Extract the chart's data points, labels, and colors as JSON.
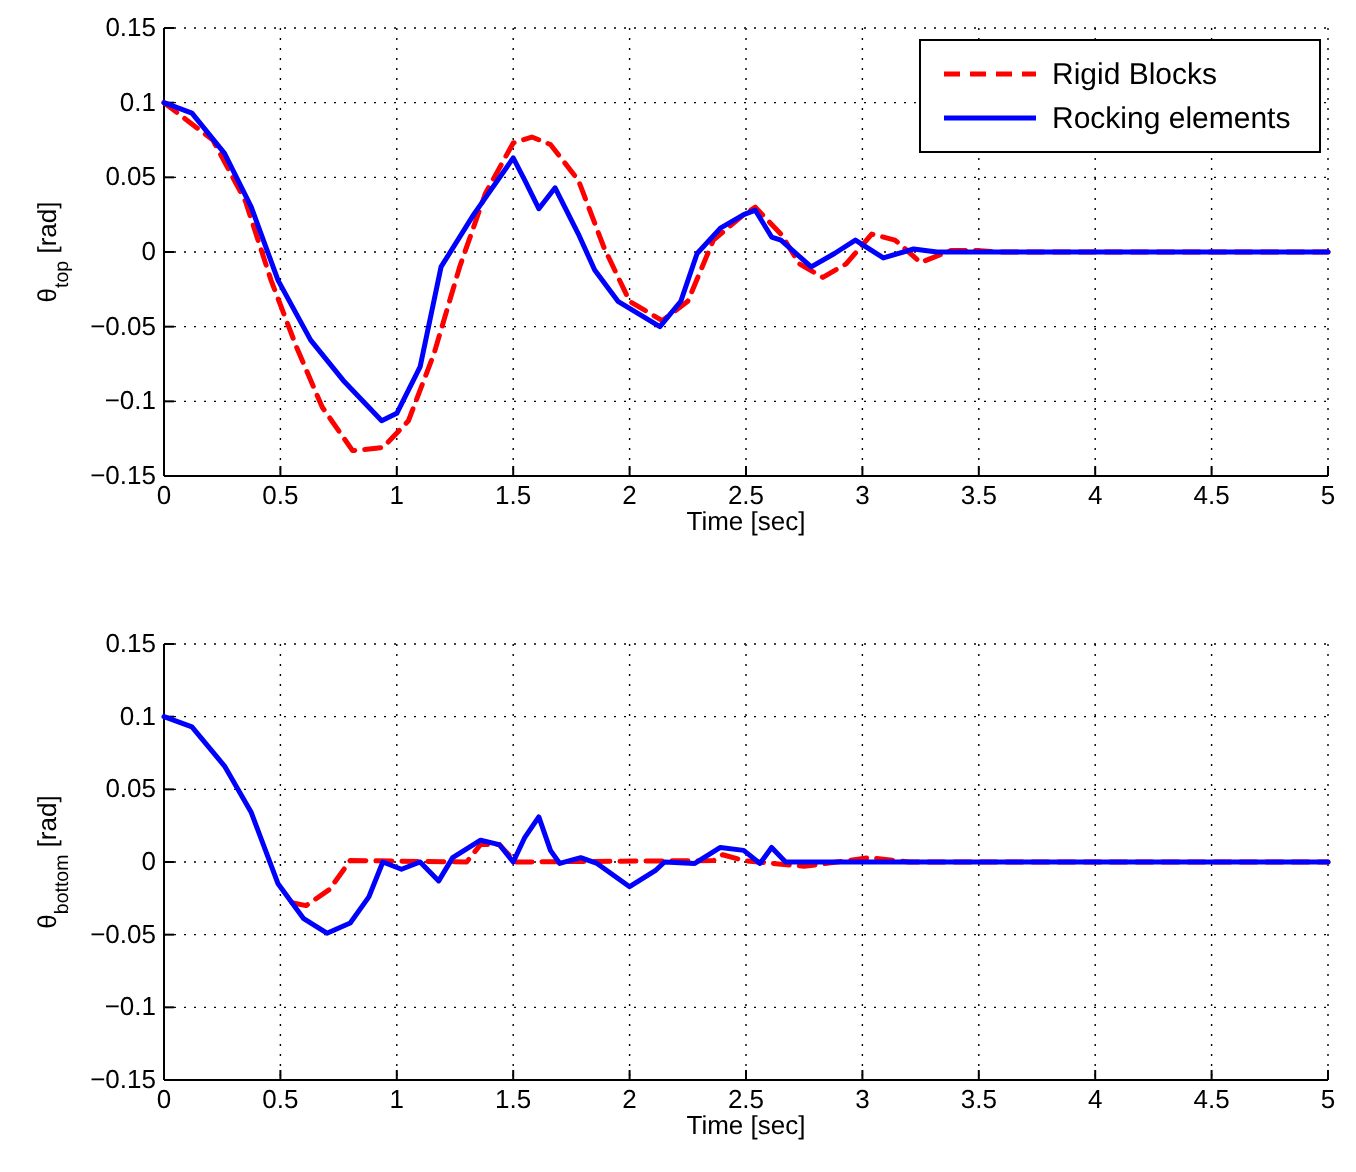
{
  "chart_data": [
    {
      "type": "line",
      "xlabel": "Time [sec]",
      "ylabel": "θ$_{top}$ [rad]",
      "xlim": [
        0,
        5
      ],
      "ylim": [
        -0.15,
        0.15
      ],
      "xticks": [
        0,
        0.5,
        1,
        1.5,
        2,
        2.5,
        3,
        3.5,
        4,
        4.5,
        5
      ],
      "yticks": [
        -0.15,
        -0.1,
        -0.05,
        0,
        0.05,
        0.1,
        0.15
      ],
      "grid": true,
      "legend": "top right",
      "series": [
        {
          "name": "Rigid Blocks",
          "color": "#ff0000",
          "line_style": "dashed",
          "x": [
            0,
            0.21,
            0.35,
            0.46,
            0.57,
            0.68,
            0.81,
            0.94,
            1.05,
            1.16,
            1.27,
            1.38,
            1.5,
            1.58,
            1.66,
            1.78,
            1.89,
            2.0,
            2.14,
            2.25,
            2.36,
            2.49,
            2.54,
            2.65,
            2.73,
            2.83,
            2.93,
            3.04,
            3.14,
            3.25,
            3.38,
            3.49,
            3.6,
            5
          ],
          "values": [
            0.1,
            0.075,
            0.034,
            -0.019,
            -0.064,
            -0.104,
            -0.133,
            -0.131,
            -0.113,
            -0.068,
            -0.01,
            0.039,
            0.073,
            0.077,
            0.072,
            0.048,
            0.003,
            -0.033,
            -0.046,
            -0.033,
            0.008,
            0.025,
            0.03,
            0.012,
            -0.008,
            -0.017,
            -0.008,
            0.012,
            0.008,
            -0.007,
            0.001,
            0.001,
            0,
            0
          ]
        },
        {
          "name": "Rocking elements",
          "color": "#0000ff",
          "line_style": "solid",
          "x": [
            0,
            0.12,
            0.26,
            0.375,
            0.49,
            0.63,
            0.77,
            0.935,
            1.0,
            1.1,
            1.19,
            1.33,
            1.5,
            1.55,
            1.61,
            1.68,
            1.78,
            1.85,
            1.95,
            2.13,
            2.22,
            2.29,
            2.39,
            2.49,
            2.54,
            2.61,
            2.65,
            2.78,
            2.88,
            2.97,
            3.09,
            3.22,
            3.32,
            5
          ],
          "values": [
            0.1,
            0.093,
            0.066,
            0.03,
            -0.019,
            -0.059,
            -0.086,
            -0.113,
            -0.108,
            -0.077,
            -0.01,
            0.025,
            0.063,
            0.048,
            0.029,
            0.043,
            0.012,
            -0.012,
            -0.033,
            -0.05,
            -0.033,
            -0.001,
            0.016,
            0.025,
            0.028,
            0.01,
            0.008,
            -0.01,
            -0.001,
            0.008,
            -0.004,
            0.002,
            0,
            0
          ]
        }
      ]
    },
    {
      "type": "line",
      "xlabel": "Time [sec]",
      "ylabel": "θ$_{bottom}$ [rad]",
      "xlim": [
        0,
        5
      ],
      "ylim": [
        -0.15,
        0.15
      ],
      "xticks": [
        0,
        0.5,
        1,
        1.5,
        2,
        2.5,
        3,
        3.5,
        4,
        4.5,
        5
      ],
      "yticks": [
        -0.15,
        -0.1,
        -0.05,
        0,
        0.05,
        0.1,
        0.15
      ],
      "grid": true,
      "series": [
        {
          "color": "#ff0000",
          "line_style": "dashed",
          "x": [
            0.55,
            0.61,
            0.71,
            0.8,
            1.3,
            1.36,
            1.44,
            1.51,
            2.36,
            2.4,
            2.49,
            2.75,
            3.03,
            3.2,
            5
          ],
          "values": [
            -0.028,
            -0.03,
            -0.019,
            0.001,
            0,
            0.012,
            0.012,
            0,
            0.001,
            0.005,
            0.001,
            -0.003,
            0.003,
            0,
            0
          ]
        },
        {
          "color": "#0000ff",
          "line_style": "solid",
          "x": [
            0,
            0.12,
            0.26,
            0.375,
            0.49,
            0.6,
            0.7,
            0.8,
            0.88,
            0.94,
            1.02,
            1.1,
            1.18,
            1.24,
            1.36,
            1.44,
            1.5,
            1.55,
            1.61,
            1.66,
            1.7,
            1.79,
            1.86,
            2.0,
            2.11,
            2.15,
            2.28,
            2.39,
            2.49,
            2.56,
            2.61,
            2.67,
            5
          ],
          "values": [
            0.1,
            0.093,
            0.066,
            0.034,
            -0.015,
            -0.039,
            -0.049,
            -0.042,
            -0.024,
            0,
            -0.005,
            0,
            -0.013,
            0.003,
            0.015,
            0.012,
            0,
            0.017,
            0.031,
            0.008,
            -0.001,
            0.003,
            -0.001,
            -0.017,
            -0.006,
            0,
            -0.001,
            0.01,
            0.008,
            -0.001,
            0.01,
            0,
            0
          ]
        }
      ]
    }
  ]
}
